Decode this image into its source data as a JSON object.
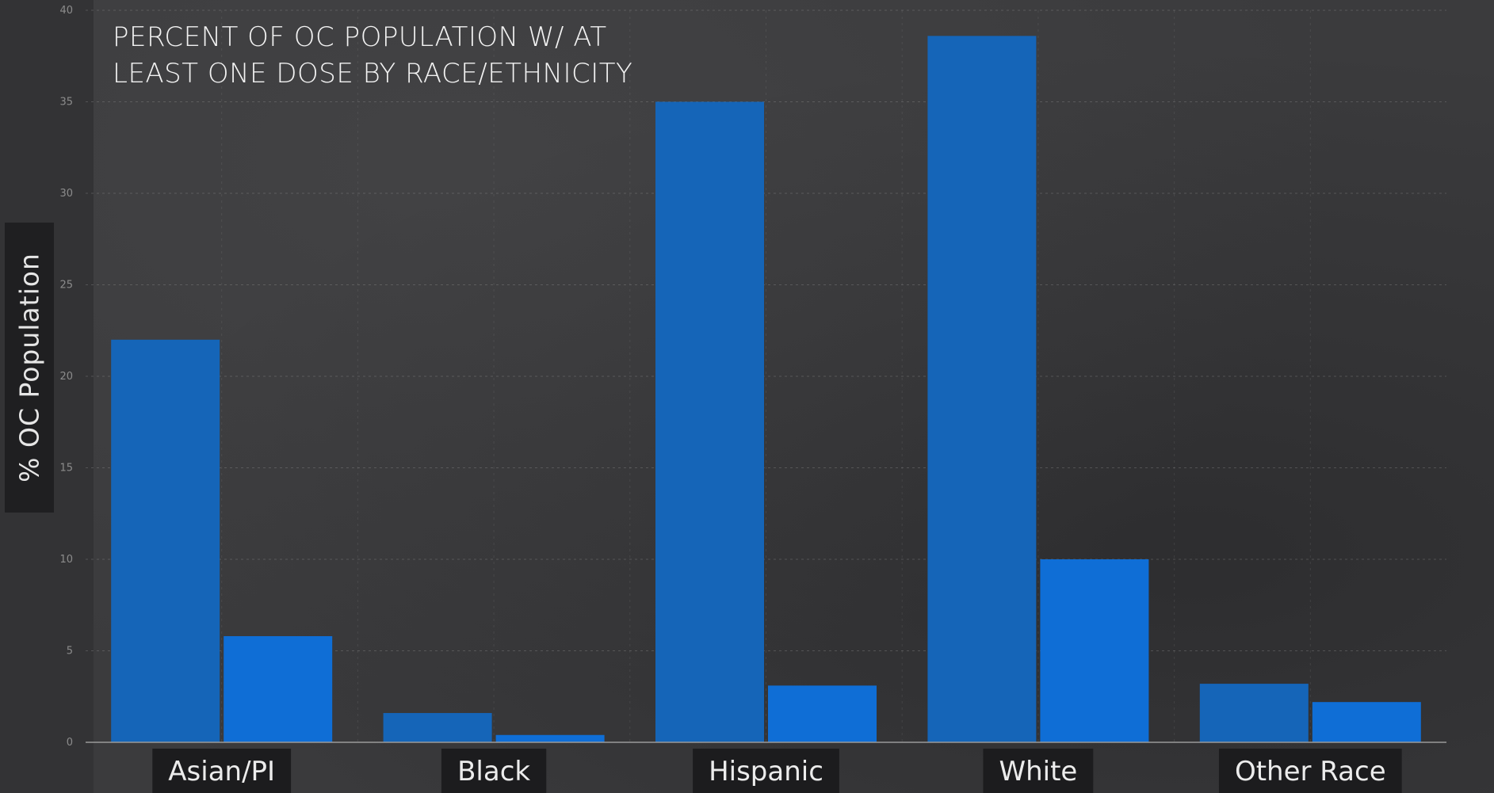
{
  "chart_data": {
    "type": "bar",
    "title": "PERCENT OF OC POPULATION W/ AT LEAST ONE DOSE BY RACE/ETHNICITY",
    "ylabel": "% OC Population",
    "xlabel": "",
    "ylim": [
      0,
      40
    ],
    "yticks": [
      0,
      5,
      10,
      15,
      20,
      25,
      30,
      35,
      40
    ],
    "grid": true,
    "categories": [
      "Asian/PI",
      "Black",
      "Hispanic",
      "White",
      "Other Race"
    ],
    "series": [
      {
        "values": [
          22,
          1.6,
          35,
          38.6,
          3.2
        ]
      },
      {
        "values": [
          5.8,
          0.4,
          3.1,
          10,
          2.2
        ]
      }
    ],
    "colors": [
      "#1565b8",
      "#0f6ed6"
    ]
  }
}
